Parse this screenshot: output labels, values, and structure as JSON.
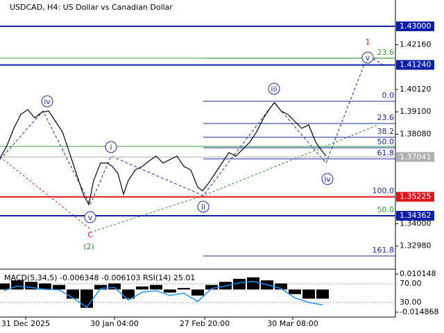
{
  "chart_data": {
    "type": "line",
    "title": "USDCAD, H4:  US Dollar vs Canadian Dollar",
    "xlim": [
      0,
      570
    ],
    "xticks": [
      {
        "value": 37,
        "label": "31 Dec 2025"
      },
      {
        "value": 165,
        "label": "30 Jan 04:00"
      },
      {
        "value": 295,
        "label": "27 Feb 20:00"
      },
      {
        "value": 422,
        "label": "30 Mar 08:00"
      }
    ],
    "ylim": [
      1.3202,
      1.442
    ],
    "yticks": [
      {
        "value": 1.4216,
        "label": "1.42160"
      },
      {
        "value": 1.4012,
        "label": "1.40120"
      },
      {
        "value": 1.391,
        "label": "1.39100"
      },
      {
        "value": 1.3808,
        "label": "1.38080"
      },
      {
        "value": 1.34,
        "label": "1.34000"
      },
      {
        "value": 1.3298,
        "label": "1.32980"
      }
    ],
    "series": [
      {
        "color": "#000000",
        "x": [
          0,
          10,
          20,
          30,
          40,
          50,
          60,
          70,
          80,
          90,
          100,
          110,
          120,
          128,
          135,
          145,
          155,
          162,
          170,
          178,
          185,
          195,
          205,
          215,
          225,
          235,
          245,
          255,
          265,
          275,
          285,
          292,
          300,
          310,
          320,
          330,
          340,
          350,
          360,
          370,
          380,
          390,
          396,
          405,
          415,
          425,
          435,
          445,
          455,
          462,
          470
        ],
        "values": [
          1.36988,
          1.37558,
          1.38349,
          1.38982,
          1.39203,
          1.38824,
          1.39077,
          1.3914,
          1.38665,
          1.38191,
          1.37242,
          1.36292,
          1.35343,
          1.34869,
          1.35976,
          1.36767,
          1.36767,
          1.36609,
          1.36292,
          1.35343,
          1.35976,
          1.36451,
          1.36609,
          1.36862,
          1.37083,
          1.36767,
          1.36925,
          1.37083,
          1.36609,
          1.36451,
          1.3566,
          1.35501,
          1.35818,
          1.36292,
          1.36767,
          1.37242,
          1.37083,
          1.374,
          1.37716,
          1.38191,
          1.38824,
          1.39298,
          1.3952,
          1.3914,
          1.38982,
          1.38665,
          1.38349,
          1.38507,
          1.37716,
          1.374,
          1.37083
        ]
      }
    ],
    "levels": [
      {
        "value": 1.43,
        "label": "1.43000",
        "color": "#0b1fa8"
      },
      {
        "value": 1.4124,
        "label": "1.41240",
        "color": "#0b1fa8"
      },
      {
        "value": 1.37041,
        "label": "1.37041",
        "color": "#b0b0b0"
      },
      {
        "value": 1.35225,
        "label": "1.35225",
        "color": "#e0141e"
      },
      {
        "value": 1.34362,
        "label": "1.34362",
        "color": "#0b1fa8"
      }
    ],
    "guides": [
      {
        "value": 1.41545,
        "color": "#3a9a3a"
      },
      {
        "value": 1.37526,
        "color": "#3a9a3a"
      }
    ],
    "fib_levels": [
      {
        "text": "0.0",
        "price": 1.39583,
        "color": "#1a2a9a"
      },
      {
        "text": "23.6",
        "price": 1.3857,
        "color": "#1a2a9a"
      },
      {
        "text": "38.2",
        "price": 1.37938,
        "color": "#1a2a9a"
      },
      {
        "text": "50.0",
        "price": 1.37463,
        "color": "#1a2a9a"
      },
      {
        "text": "61.8",
        "price": 1.36957,
        "color": "#1a2a9a"
      },
      {
        "text": "100.0",
        "price": 1.35225,
        "color": "#1a2a9a"
      },
      {
        "text": "50.0",
        "price": 1.34362,
        "color": "#3a9a3a"
      },
      {
        "text": "161.8",
        "price": 1.32527,
        "color": "#1a2a9a"
      },
      {
        "text": "23.6",
        "price": 1.41545,
        "color": "#3a9a3a"
      }
    ],
    "waves": [
      {
        "text": "iv",
        "x": 68,
        "price": 1.39583,
        "color": "#1a2aa8",
        "circle": true
      },
      {
        "text": "i",
        "x": 160,
        "price": 1.37495,
        "color": "#1a2aa8",
        "circle": true
      },
      {
        "text": "ii",
        "x": 293,
        "price": 1.34774,
        "color": "#1a2aa8",
        "circle": true
      },
      {
        "text": "iii",
        "x": 395,
        "price": 1.40152,
        "color": "#1a2aa8",
        "circle": true
      },
      {
        "text": "iv",
        "x": 472,
        "price": 1.36039,
        "color": "#1a2aa8",
        "circle": true
      },
      {
        "text": "v",
        "x": 130,
        "price": 1.34299,
        "color": "#1a2aa8",
        "circle": true
      },
      {
        "text": "v",
        "x": 530,
        "price": 1.41576,
        "color": "#1a2aa8",
        "circle": true
      },
      {
        "text": "1",
        "x": 530,
        "price": 1.42304,
        "color": "#cc1a1a",
        "circle": false
      },
      {
        "text": "C",
        "x": 130,
        "price": 1.33508,
        "color": "#cc1a1a",
        "circle": false
      },
      {
        "text": "(2)",
        "x": 128,
        "price": 1.3297,
        "color": "#2a8a2a",
        "circle": false
      }
    ],
    "indicator": {
      "title": "MACD(5,34,5) -0.006348 -0.006103 RSI(14) 25.01",
      "x": [
        5,
        25,
        45,
        65,
        85,
        105,
        125,
        145,
        165,
        185,
        205,
        225,
        245,
        265,
        285,
        305,
        325,
        345,
        365,
        385,
        405,
        425,
        445,
        465
      ],
      "ylim": [
        -0.018053,
        0.012422
      ],
      "yticks": [
        0.010148,
        -0.014868
      ],
      "y2lim": [
        -1.11,
        98.15
      ],
      "y2ticks": [
        {
          "value": 70,
          "label": "70.00"
        },
        {
          "value": 30,
          "label": "30.00"
        }
      ],
      "series": [
        {
          "color": "#000000",
          "values": [
            0.004,
            0.006,
            0.005,
            0.004,
            0.003,
            -0.006,
            -0.012,
            0.003,
            0.004,
            -0.006,
            0.002,
            0.003,
            -0.002,
            0.001,
            -0.004,
            0.003,
            0.005,
            0.007,
            0.008,
            0.006,
            0.004,
            -0.003,
            -0.006,
            -0.006
          ]
        },
        {
          "color": "#1e8fff",
          "axis": "y2",
          "values": [
            55,
            65,
            62,
            58,
            57,
            40,
            20,
            60,
            62,
            35,
            52,
            55,
            45,
            50,
            32,
            60,
            65,
            72,
            75,
            68,
            60,
            40,
            30,
            25
          ]
        }
      ]
    }
  }
}
